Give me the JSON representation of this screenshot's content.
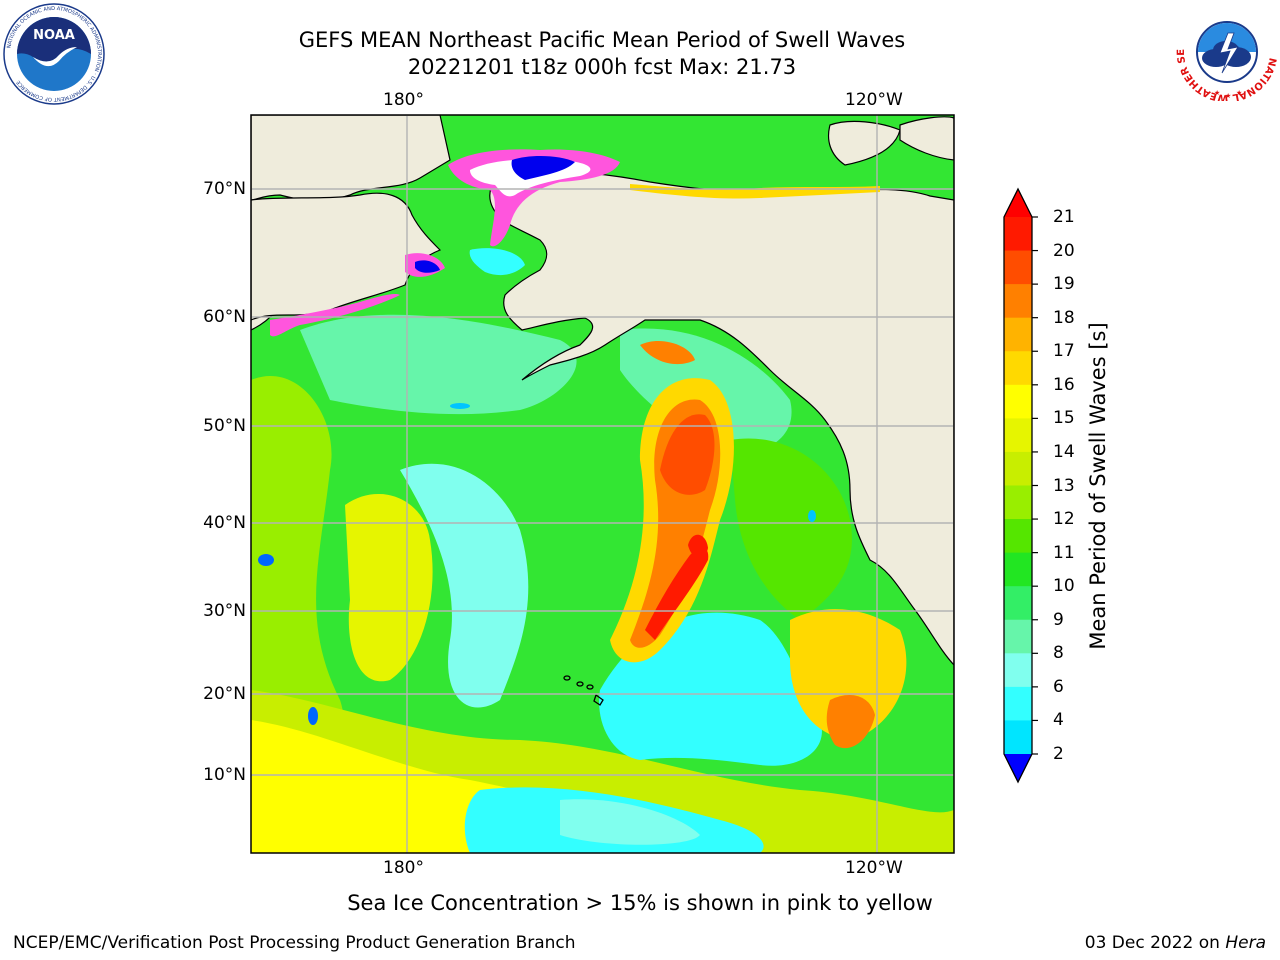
{
  "header": {
    "title_line1": "GEFS MEAN Northeast Pacific Mean Period of Swell Waves",
    "title_line2": "20221201 t18z 000h fcst   Max: 21.73"
  },
  "map": {
    "top_lon_labels": [
      "180°",
      "120°W"
    ],
    "bottom_lon_labels": [
      "180°",
      "120°W"
    ],
    "lat_labels": [
      "70°N",
      "60°N",
      "50°N",
      "40°N",
      "30°N",
      "20°N",
      "10°N"
    ],
    "land_color": "#efecdc",
    "ocean_variable": "Mean Period of Swell Waves",
    "max_value": 21.73
  },
  "colorbar": {
    "label": "Mean Period of Swell Waves [s]",
    "ticks": [
      "21",
      "20",
      "19",
      "18",
      "17",
      "16",
      "15",
      "14",
      "13",
      "12",
      "11",
      "10",
      "9",
      "8",
      "6",
      "4",
      "2"
    ],
    "colors": [
      "#ff1a00",
      "#ff4d00",
      "#ff8000",
      "#ffb300",
      "#ffd900",
      "#ffff00",
      "#e6f500",
      "#c8ee00",
      "#99ee00",
      "#55e600",
      "#22e622",
      "#33ee66",
      "#66f5aa",
      "#80ffee",
      "#33ffff",
      "#00e5ff",
      "#00c4ff",
      "#0066ff"
    ],
    "under_color": "#0000ff",
    "over_color": "#ff0000"
  },
  "caption": "Sea Ice Concentration > 15% is shown in pink to yellow",
  "footer": {
    "left": "NCEP/EMC/Verification Post Processing Product Generation Branch",
    "right_date": "03 Dec 2022 on ",
    "right_host": "Hera"
  },
  "logos": {
    "noaa_text": "NOAA",
    "noaa_ring": "NATIONAL OCEANIC AND ATMOSPHERIC ADMINISTRATION · U.S. DEPARTMENT OF COMMERCE",
    "nws_ring": "NATIONAL WEATHER SERVICE"
  }
}
